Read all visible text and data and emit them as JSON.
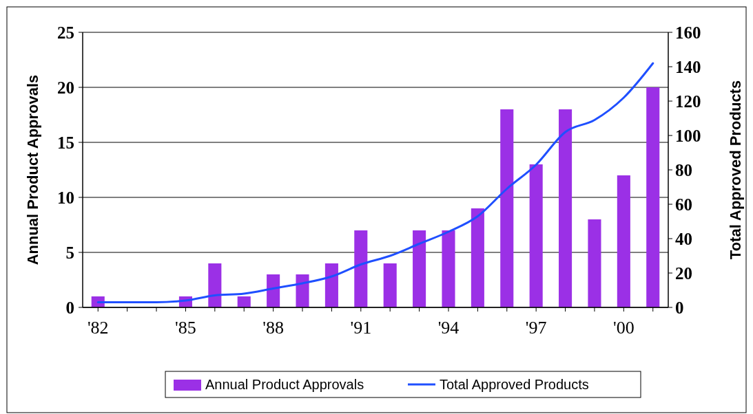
{
  "chart_data": {
    "type": "bar",
    "ylabel": "Annual Product Approvals",
    "y2label": "Total Approved Products",
    "categories": [
      "'82",
      null,
      null,
      "'85",
      null,
      null,
      "'88",
      null,
      null,
      "'91",
      null,
      null,
      "'94",
      null,
      null,
      "'97",
      null,
      null,
      "'00",
      null
    ],
    "series": [
      {
        "name": "Annual Product Approvals",
        "color": "#9b30e6",
        "values": [
          1,
          0,
          0,
          1,
          4,
          1,
          3,
          3,
          4,
          7,
          4,
          7,
          7,
          9,
          18,
          13,
          18,
          8,
          12,
          20
        ]
      },
      {
        "name": "Total Approved Products",
        "type": "line",
        "axis": "y2",
        "color": "#1f4fff",
        "values": [
          3,
          3,
          3,
          4,
          7,
          8,
          11,
          14,
          18,
          25,
          30,
          37,
          44,
          53,
          69,
          83,
          102,
          109,
          122,
          142
        ]
      }
    ],
    "ylim": [
      0,
      25
    ],
    "yticks": [
      0,
      5,
      10,
      15,
      20,
      25
    ],
    "y2lim": [
      0,
      160
    ],
    "y2ticks": [
      0,
      20,
      40,
      60,
      80,
      100,
      120,
      140,
      160
    ],
    "grid": "y",
    "legend": "bottom",
    "marker": "none",
    "line_style": "solid"
  }
}
